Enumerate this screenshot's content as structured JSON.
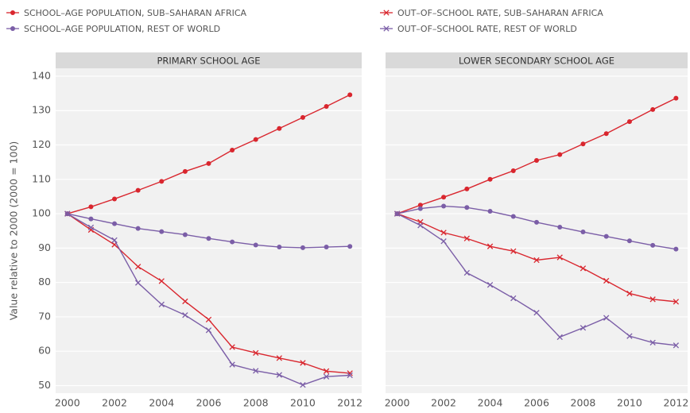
{
  "chart_data": [
    {
      "type": "line",
      "title": "PRIMARY SCHOOL AGE",
      "y_label": "Value relative to 2000 (2000 = 100)",
      "x": [
        2000,
        2001,
        2002,
        2003,
        2004,
        2005,
        2006,
        2007,
        2008,
        2009,
        2010,
        2011,
        2012
      ],
      "xlim": [
        1999.5,
        2012.5
      ],
      "xticks": [
        2000,
        2002,
        2004,
        2006,
        2008,
        2010,
        2012
      ],
      "ylim": [
        47.8,
        142.3
      ],
      "yticks": [
        50,
        60,
        70,
        80,
        90,
        100,
        110,
        120,
        130,
        140
      ],
      "grid": true,
      "series": [
        {
          "name": "SCHOOL–AGE POPULATION, SUB–SAHARAN AFRICA",
          "color": "#d9262e",
          "marker": "circle",
          "values": [
            100,
            102,
            104.3,
            106.8,
            109.4,
            112.3,
            114.6,
            118.5,
            121.6,
            124.8,
            128,
            131.2,
            134.6
          ]
        },
        {
          "name": "SCHOOL–AGE POPULATION, REST OF WORLD",
          "color": "#7b5ea7",
          "marker": "circle",
          "values": [
            100,
            98.5,
            97.1,
            95.7,
            94.8,
            93.9,
            92.8,
            91.8,
            90.9,
            90.3,
            90.1,
            90.3,
            90.5
          ]
        },
        {
          "name": "OUT–OF–SCHOOL RATE, SUB–SAHARAN AFRICA",
          "color": "#d9262e",
          "marker": "x",
          "values": [
            100,
            95.3,
            91,
            84.6,
            80.4,
            74.5,
            69.2,
            61.2,
            59.5,
            58,
            56.6,
            54.2,
            53.6
          ]
        },
        {
          "name": "OUT–OF–SCHOOL RATE, REST OF WORLD",
          "color": "#7b5ea7",
          "marker": "x",
          "values": [
            100,
            96,
            92.3,
            79.9,
            73.6,
            70.5,
            66.1,
            56.1,
            54.3,
            53.1,
            50.2,
            52.6,
            53
          ]
        }
      ]
    },
    {
      "type": "line",
      "title": "LOWER SECONDARY SCHOOL AGE",
      "x": [
        2000,
        2001,
        2002,
        2003,
        2004,
        2005,
        2006,
        2007,
        2008,
        2009,
        2010,
        2011,
        2012
      ],
      "xlim": [
        1999.5,
        2012.5
      ],
      "xticks": [
        2000,
        2002,
        2004,
        2006,
        2008,
        2010,
        2012
      ],
      "ylim": [
        47.8,
        142.3
      ],
      "yticks": [
        50,
        60,
        70,
        80,
        90,
        100,
        110,
        120,
        130,
        140
      ],
      "grid": true,
      "series": [
        {
          "color": "#d9262e",
          "marker": "circle",
          "values": [
            100,
            102.5,
            104.8,
            107.2,
            110,
            112.5,
            115.5,
            117.2,
            120.3,
            123.3,
            126.8,
            130.3,
            133.6
          ]
        },
        {
          "color": "#7b5ea7",
          "marker": "circle",
          "values": [
            100,
            101.5,
            102.2,
            101.8,
            100.7,
            99.2,
            97.5,
            96.1,
            94.7,
            93.4,
            92.1,
            90.8,
            89.7
          ]
        },
        {
          "color": "#d9262e",
          "marker": "x",
          "values": [
            100,
            97.6,
            94.5,
            92.8,
            90.5,
            89.1,
            86.5,
            87.3,
            84.1,
            80.5,
            76.8,
            75.1,
            74.4
          ]
        },
        {
          "color": "#7b5ea7",
          "marker": "x",
          "values": [
            100,
            96.6,
            92,
            82.8,
            79.3,
            75.4,
            71.2,
            64.1,
            66.8,
            69.7,
            64.4,
            62.5,
            61.7
          ]
        }
      ]
    }
  ]
}
